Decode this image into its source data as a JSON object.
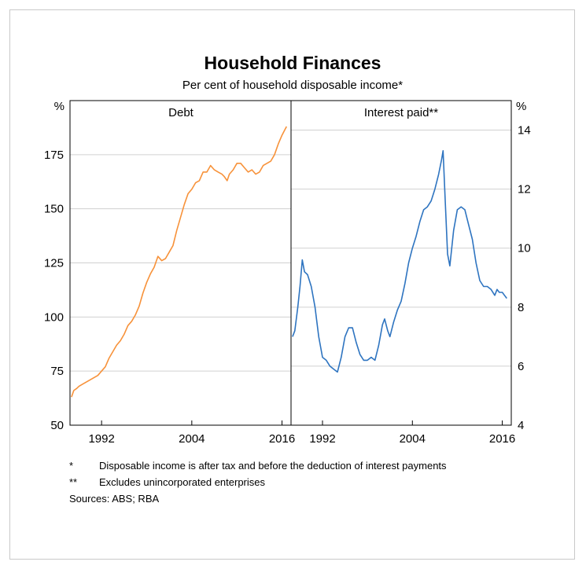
{
  "chart_data": {
    "type": "line",
    "title": "Household Finances",
    "subtitle": "Per cent of household disposable income*",
    "panels": [
      {
        "title": "Debt",
        "unit": "%",
        "axis_side": "left",
        "ylim": [
          50,
          200
        ],
        "yticks": [
          50,
          75,
          100,
          125,
          150,
          175
        ],
        "xlim": [
          1987.8,
          2017.2
        ],
        "xticks": [
          1992,
          2004,
          2016
        ],
        "color": "#f7923a",
        "series": [
          {
            "x": [
              1988.0,
              1988.3,
              1988.7,
              1989.0,
              1989.5,
              1990.0,
              1990.5,
              1991.0,
              1991.5,
              1992.0,
              1992.5,
              1993.0,
              1993.5,
              1994.0,
              1994.5,
              1995.0,
              1995.5,
              1996.0,
              1996.5,
              1997.0,
              1997.5,
              1998.0,
              1998.5,
              1999.0,
              1999.5,
              2000.0,
              2000.5,
              2001.0,
              2001.5,
              2002.0,
              2002.5,
              2003.0,
              2003.5,
              2004.0,
              2004.5,
              2005.0,
              2005.5,
              2006.0,
              2006.5,
              2007.0,
              2007.5,
              2008.0,
              2008.3,
              2008.7,
              2009.0,
              2009.5,
              2010.0,
              2010.5,
              2011.0,
              2011.5,
              2012.0,
              2012.5,
              2013.0,
              2013.5,
              2014.0,
              2014.5,
              2015.0,
              2015.5,
              2016.0,
              2016.3,
              2016.6
            ],
            "values": [
              63,
              66,
              67,
              68,
              69,
              70,
              71,
              72,
              73,
              75,
              77,
              81,
              84,
              87,
              89,
              92,
              96,
              98,
              101,
              105,
              111,
              116,
              120,
              123,
              128,
              126,
              127,
              130,
              133,
              140,
              146,
              152,
              157,
              159,
              162,
              163,
              167,
              167,
              170,
              168,
              167,
              166,
              165,
              163,
              166,
              168,
              171,
              171,
              169,
              167,
              168,
              166,
              167,
              170,
              171,
              172,
              175,
              180,
              184,
              186,
              188
            ]
          }
        ]
      },
      {
        "title": "Interest paid**",
        "unit": "%",
        "axis_side": "right",
        "ylim": [
          4,
          15
        ],
        "yticks": [
          4,
          6,
          8,
          10,
          12,
          14
        ],
        "xlim": [
          1987.8,
          2017.2
        ],
        "xticks": [
          1992,
          2004,
          2016
        ],
        "color": "#2e74c0",
        "series": [
          {
            "x": [
              1988.0,
              1988.3,
              1988.7,
              1989.0,
              1989.3,
              1989.6,
              1990.0,
              1990.5,
              1991.0,
              1991.5,
              1992.0,
              1992.5,
              1993.0,
              1993.5,
              1994.0,
              1994.5,
              1995.0,
              1995.5,
              1996.0,
              1996.5,
              1997.0,
              1997.5,
              1998.0,
              1998.5,
              1999.0,
              1999.5,
              2000.0,
              2000.3,
              2000.7,
              2001.0,
              2001.5,
              2002.0,
              2002.5,
              2003.0,
              2003.5,
              2004.0,
              2004.5,
              2005.0,
              2005.5,
              2006.0,
              2006.5,
              2007.0,
              2007.5,
              2007.9,
              2008.1,
              2008.4,
              2008.7,
              2009.0,
              2009.5,
              2010.0,
              2010.5,
              2011.0,
              2011.5,
              2012.0,
              2012.5,
              2013.0,
              2013.5,
              2014.0,
              2014.5,
              2015.0,
              2015.3,
              2015.6,
              2016.0,
              2016.3,
              2016.6
            ],
            "values": [
              7.0,
              7.2,
              8.0,
              8.7,
              9.6,
              9.2,
              9.1,
              8.7,
              8.0,
              7.0,
              6.3,
              6.2,
              6.0,
              5.9,
              5.8,
              6.3,
              7.0,
              7.3,
              7.3,
              6.8,
              6.4,
              6.2,
              6.2,
              6.3,
              6.2,
              6.7,
              7.4,
              7.6,
              7.2,
              7.0,
              7.5,
              7.9,
              8.2,
              8.8,
              9.5,
              10.0,
              10.4,
              10.9,
              11.3,
              11.4,
              11.6,
              12.0,
              12.5,
              13.0,
              13.3,
              11.5,
              9.8,
              9.4,
              10.6,
              11.3,
              11.4,
              11.3,
              10.8,
              10.3,
              9.5,
              8.9,
              8.7,
              8.7,
              8.6,
              8.4,
              8.6,
              8.5,
              8.5,
              8.4,
              8.3
            ]
          }
        ]
      }
    ],
    "footnotes": [
      {
        "mark": "*",
        "text": "Disposable income is after tax and before the deduction of interest payments"
      },
      {
        "mark": "**",
        "text": "Excludes unincorporated enterprises"
      }
    ],
    "sources": "Sources: ABS; RBA"
  }
}
